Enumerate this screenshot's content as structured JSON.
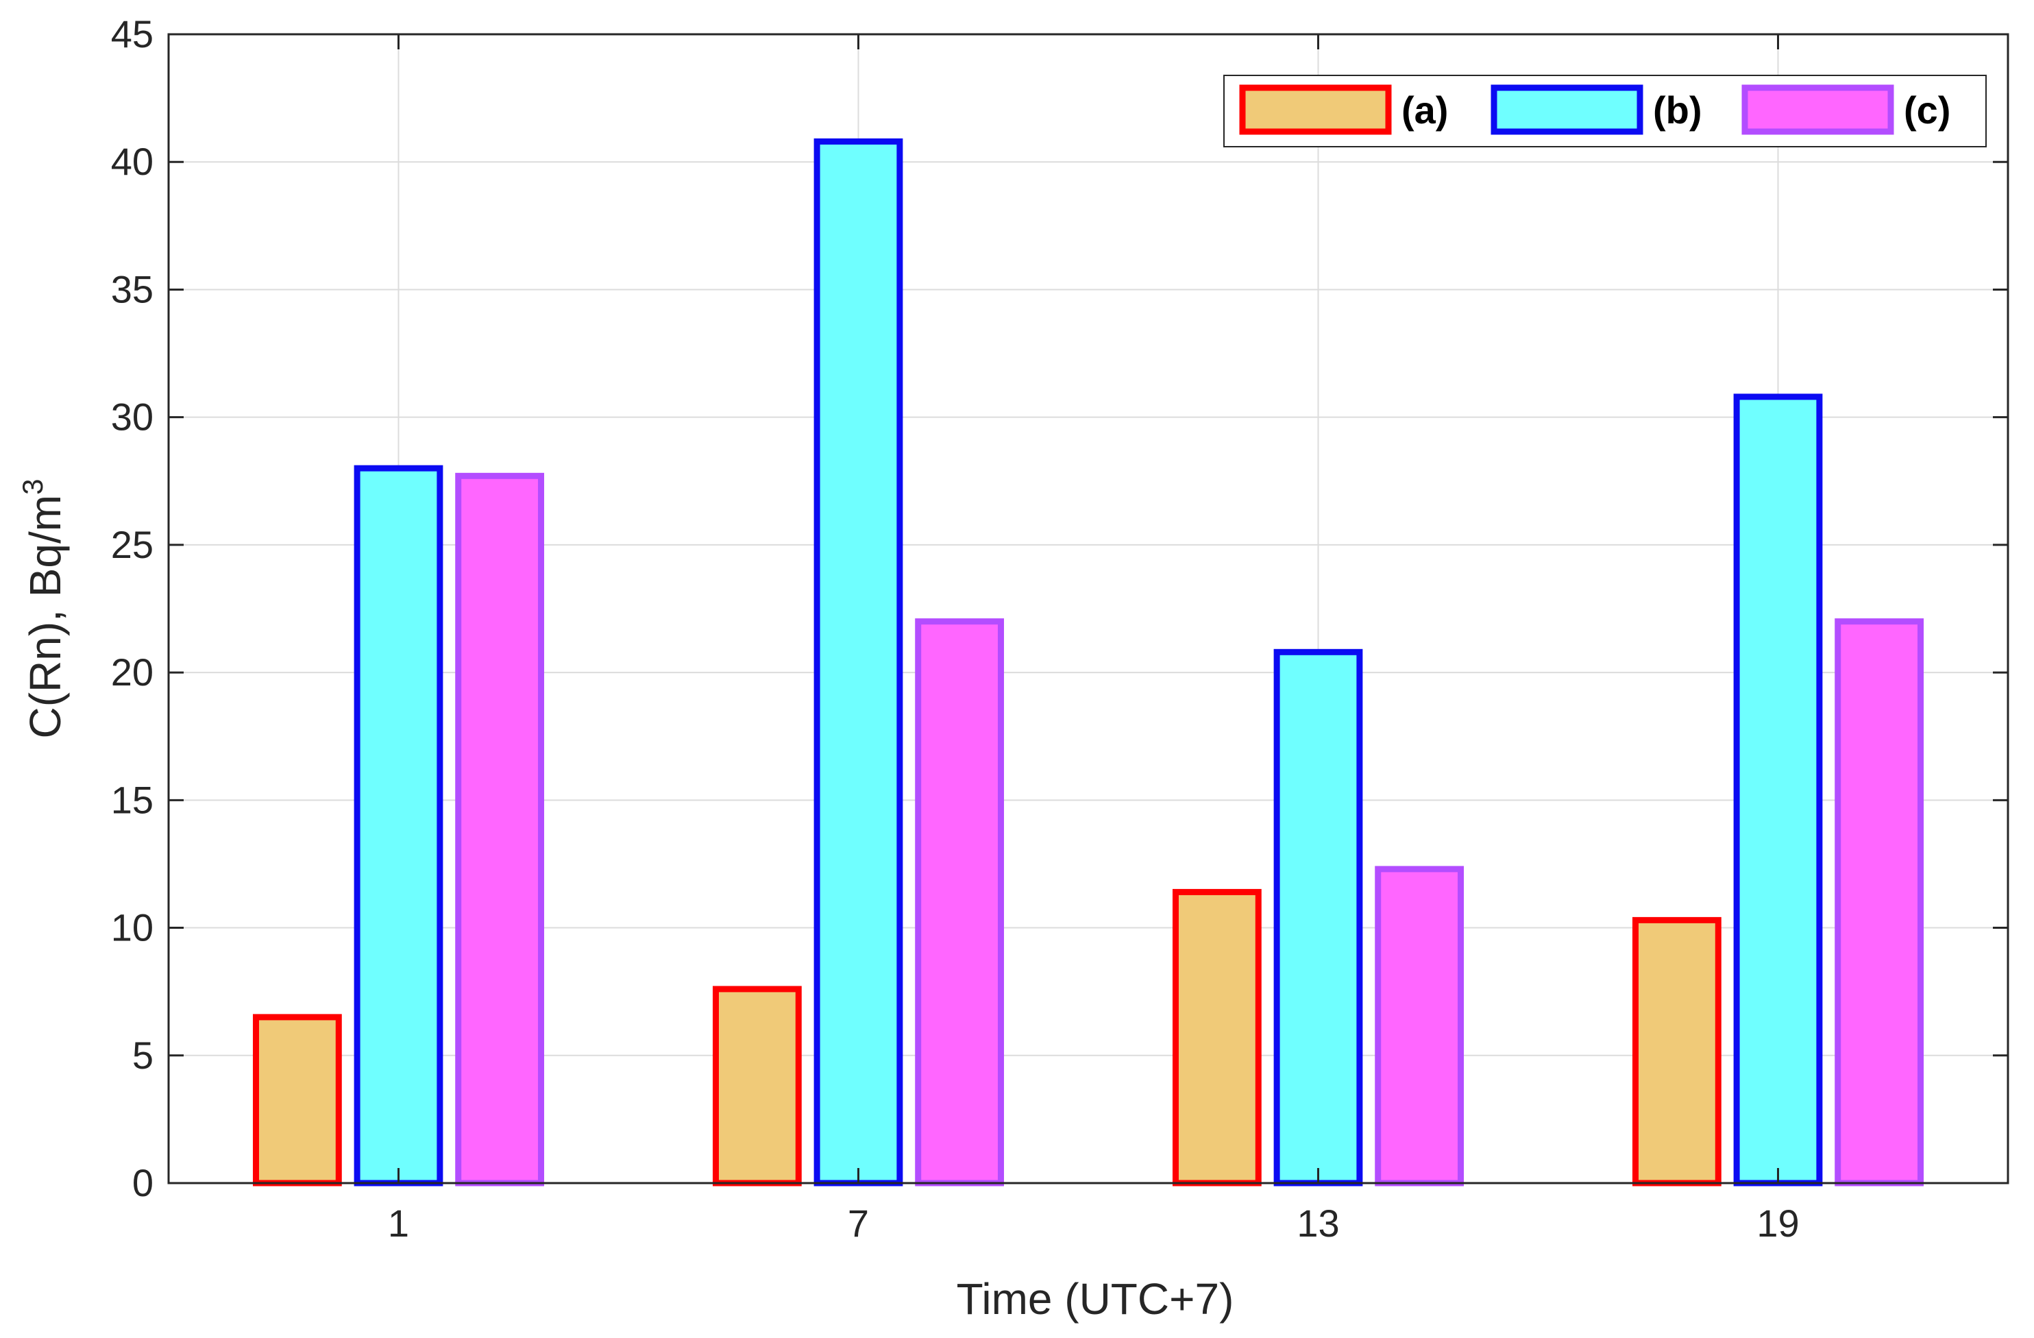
{
  "chart_data": {
    "type": "bar",
    "title": "",
    "xlabel": "Time (UTC+7)",
    "ylabel": "C(Rn), Bq/m",
    "ylabel_superscript": "3",
    "categories": [
      "1",
      "7",
      "13",
      "19"
    ],
    "ylim": [
      0,
      45
    ],
    "yticks": [
      0,
      5,
      10,
      15,
      20,
      25,
      30,
      35,
      40,
      45
    ],
    "grid": true,
    "legend_position": "top-right",
    "series": [
      {
        "name": "(a)",
        "values": [
          6.5,
          7.6,
          11.4,
          10.3
        ],
        "fill": "#F0CA78",
        "stroke": "#FF0000"
      },
      {
        "name": "(b)",
        "values": [
          28.0,
          40.8,
          20.8,
          30.8
        ],
        "fill": "#6FFFFF",
        "stroke": "#0B0BF2"
      },
      {
        "name": "(c)",
        "values": [
          27.7,
          22.0,
          12.3,
          22.0
        ],
        "fill": "#FF66FF",
        "stroke": "#B34DFF"
      }
    ]
  }
}
